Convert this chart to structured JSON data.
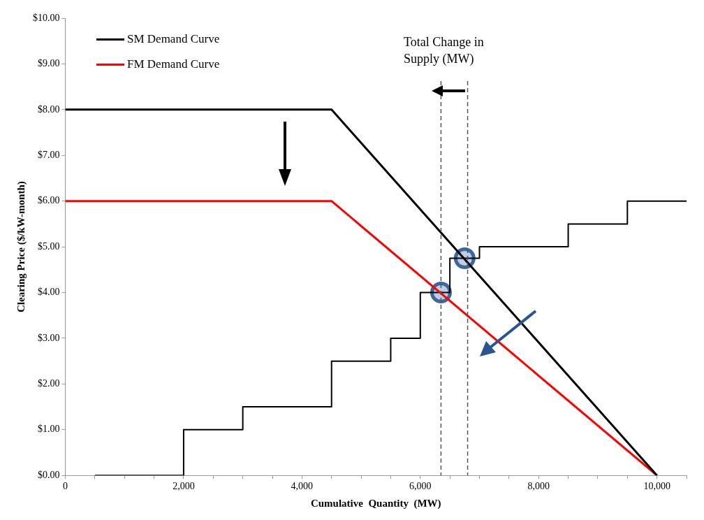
{
  "chart_data": {
    "type": "line",
    "xlabel": "Cumulative  Quantity  (MW)",
    "ylabel": "Clearing Price ($/kW-month)",
    "xlim": [
      0,
      10500
    ],
    "ylim": [
      0,
      10
    ],
    "xticks": [
      0,
      {
        "value": 500,
        "label": null
      },
      {
        "value": 1000,
        "label": null
      },
      {
        "value": 1500,
        "label": null
      },
      {
        "value": 2000,
        "label": "2,000"
      },
      {
        "value": 2500,
        "label": null
      },
      {
        "value": 3000,
        "label": null
      },
      {
        "value": 3500,
        "label": null
      },
      {
        "value": 4000,
        "label": "4,000"
      },
      {
        "value": 4500,
        "label": null
      },
      {
        "value": 5000,
        "label": null
      },
      {
        "value": 5500,
        "label": null
      },
      {
        "value": 6000,
        "label": "6,000"
      },
      {
        "value": 6500,
        "label": null
      },
      {
        "value": 7000,
        "label": null
      },
      {
        "value": 7500,
        "label": null
      },
      {
        "value": 8000,
        "label": "8,000"
      },
      {
        "value": 8500,
        "label": null
      },
      {
        "value": 9000,
        "label": null
      },
      {
        "value": 9500,
        "label": null
      },
      {
        "value": 10000,
        "label": "10,000"
      },
      {
        "value": 10500,
        "label": null
      }
    ],
    "yticks": [
      {
        "value": 0,
        "label": "$0.00"
      },
      {
        "value": 1,
        "label": "$1.00"
      },
      {
        "value": 2,
        "label": "$2.00"
      },
      {
        "value": 3,
        "label": "$3.00"
      },
      {
        "value": 4,
        "label": "$4.00"
      },
      {
        "value": 5,
        "label": "$5.00"
      },
      {
        "value": 6,
        "label": "$6.00"
      },
      {
        "value": 7,
        "label": "$7.00"
      },
      {
        "value": 8,
        "label": "$8.00"
      },
      {
        "value": 9,
        "label": "$9.00"
      },
      {
        "value": 10,
        "label": "$10.00"
      }
    ],
    "grid": false,
    "legend": "top left",
    "line_style": "solid",
    "series": [
      {
        "name": "SM Demand Curve",
        "color": "#000000",
        "x": [
          0,
          4500,
          10000
        ],
        "values": [
          8,
          8,
          0
        ]
      },
      {
        "name": "FM Demand Curve",
        "color": "#ff0000",
        "x": [
          0,
          4500,
          10000
        ],
        "values": [
          6,
          6,
          0
        ]
      },
      {
        "type": "step",
        "color": "#000000",
        "x": [
          500,
          2000,
          3000,
          4500,
          5500,
          6000,
          6500,
          7000,
          8500,
          9500,
          10500
        ],
        "values": [
          0,
          1,
          1.5,
          2.5,
          3,
          4,
          4.75,
          5,
          5.5,
          6,
          6
        ]
      },
      {
        "type": "scatter",
        "color": "#41679a",
        "marker": "circle",
        "x": [
          6350,
          6750
        ],
        "values": [
          4,
          4.75
        ]
      }
    ],
    "ref_lines": [
      {
        "axis": "x",
        "value": 6350,
        "color": "#555555",
        "line_style": "dashed"
      },
      {
        "axis": "x",
        "value": 6800,
        "color": "#555555",
        "line_style": "dashed"
      }
    ],
    "annotations": [
      "Total Change in Supply (MW)"
    ]
  }
}
